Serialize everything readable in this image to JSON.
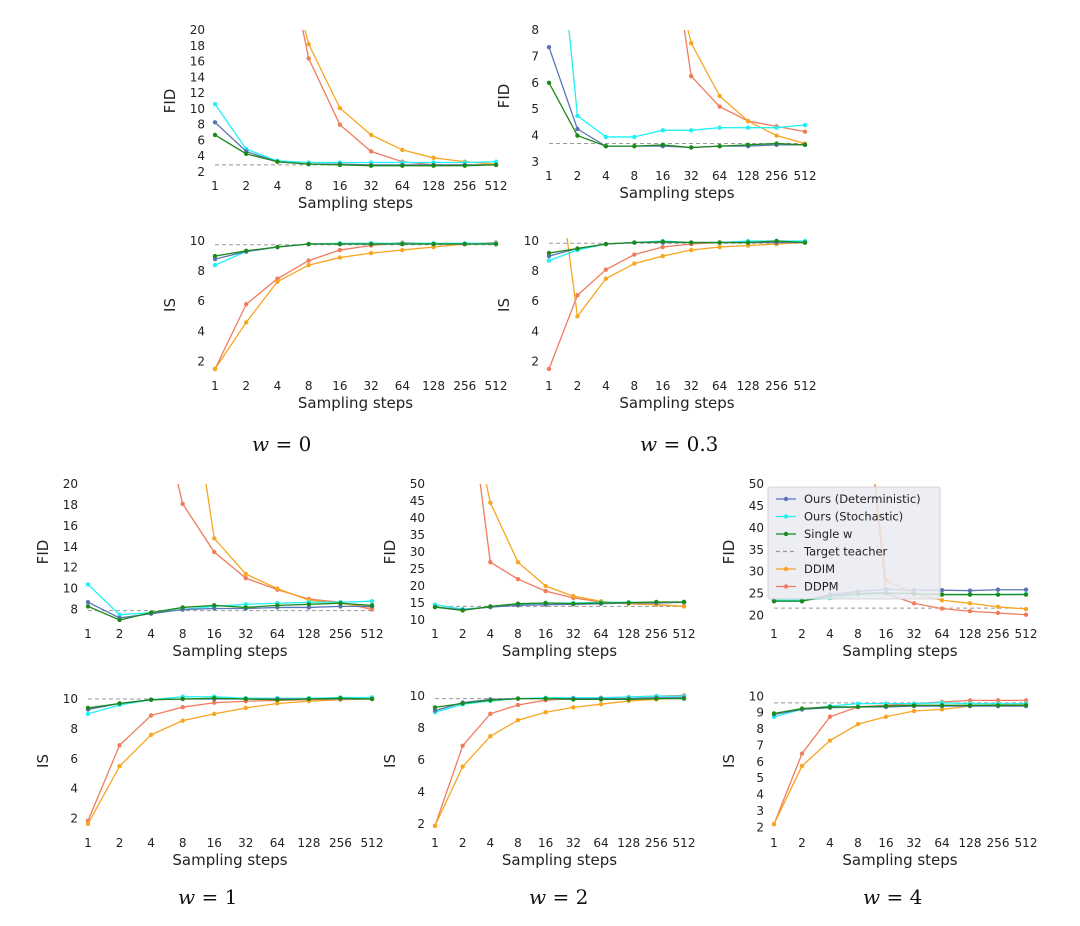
{
  "x_ticks": [
    "1",
    "2",
    "4",
    "8",
    "16",
    "32",
    "64",
    "128",
    "256",
    "512"
  ],
  "legend": [
    {
      "label": "Ours (Deterministic)",
      "color": "#5b74b8",
      "marker": true,
      "dashed": false
    },
    {
      "label": "Ours (Stochastic)",
      "color": "#1ff2f2",
      "marker": true,
      "dashed": false
    },
    {
      "label": "Single w",
      "color": "#1b8a1b",
      "marker": true,
      "dashed": false
    },
    {
      "label": "Target teacher",
      "color": "#999999",
      "marker": false,
      "dashed": true
    },
    {
      "label": "DDIM",
      "color": "#f7a621",
      "marker": true,
      "dashed": false
    },
    {
      "label": "DDPM",
      "color": "#f07c5e",
      "marker": true,
      "dashed": false
    }
  ],
  "captions": [
    {
      "var": "w",
      "eq": " = 0"
    },
    {
      "var": "w",
      "eq": " = 0.3"
    },
    {
      "var": "w",
      "eq": " = 1"
    },
    {
      "var": "w",
      "eq": " = 2"
    },
    {
      "var": "w",
      "eq": " = 4"
    }
  ],
  "chart_data": [
    {
      "type": "line",
      "panel": "w = 0",
      "metric": "FID",
      "xlabel": "Sampling steps",
      "ylabel": "FID",
      "x": [
        1,
        2,
        4,
        8,
        16,
        32,
        64,
        128,
        256,
        512
      ],
      "ylim": [
        2,
        20
      ],
      "yticks": [
        2,
        4,
        6,
        8,
        10,
        12,
        14,
        16,
        18,
        20
      ],
      "target": 2.9,
      "series": [
        {
          "name": "Ours (Deterministic)",
          "values": [
            8.3,
            4.6,
            3.3,
            3.0,
            3.0,
            2.9,
            2.9,
            2.9,
            2.9,
            2.9
          ]
        },
        {
          "name": "Ours (Stochastic)",
          "values": [
            10.6,
            4.9,
            3.4,
            3.2,
            3.2,
            3.2,
            3.2,
            3.2,
            3.2,
            3.3
          ]
        },
        {
          "name": "Single w",
          "values": [
            6.7,
            4.3,
            3.3,
            3.0,
            2.9,
            2.8,
            2.8,
            2.8,
            2.8,
            2.9
          ]
        },
        {
          "name": "DDIM",
          "values": [
            null,
            null,
            null,
            18.2,
            10.1,
            6.7,
            4.8,
            3.8,
            3.3,
            3.0
          ]
        },
        {
          "name": "DDPM",
          "values": [
            null,
            null,
            null,
            16.4,
            8.0,
            4.6,
            3.3,
            2.9,
            2.9,
            2.9
          ]
        }
      ]
    },
    {
      "type": "line",
      "panel": "w = 0",
      "metric": "IS",
      "xlabel": "Sampling steps",
      "ylabel": "IS",
      "x": [
        1,
        2,
        4,
        8,
        16,
        32,
        64,
        128,
        256,
        512
      ],
      "ylim": [
        1.3,
        10.2
      ],
      "yticks": [
        2,
        4,
        6,
        8,
        10
      ],
      "target": 9.75,
      "series": [
        {
          "name": "Ours (Deterministic)",
          "values": [
            8.8,
            9.3,
            9.6,
            9.8,
            9.8,
            9.8,
            9.8,
            9.8,
            9.8,
            9.8
          ]
        },
        {
          "name": "Ours (Stochastic)",
          "values": [
            8.4,
            9.3,
            9.6,
            9.8,
            9.85,
            9.85,
            9.85,
            9.85,
            9.85,
            9.85
          ]
        },
        {
          "name": "Single w",
          "values": [
            9.0,
            9.35,
            9.6,
            9.8,
            9.8,
            9.8,
            9.8,
            9.8,
            9.8,
            9.8
          ]
        },
        {
          "name": "DDIM",
          "values": [
            1.5,
            4.6,
            7.3,
            8.4,
            8.9,
            9.2,
            9.4,
            9.6,
            9.8,
            9.8
          ]
        },
        {
          "name": "DDPM",
          "values": [
            1.5,
            5.8,
            7.5,
            8.7,
            9.4,
            9.7,
            9.9,
            9.8,
            9.8,
            9.9
          ]
        }
      ]
    },
    {
      "type": "line",
      "panel": "w = 0.3",
      "metric": "FID",
      "xlabel": "Sampling steps",
      "ylabel": "FID",
      "x": [
        1,
        2,
        4,
        8,
        16,
        32,
        64,
        128,
        256,
        512
      ],
      "ylim": [
        3,
        8
      ],
      "yticks": [
        3,
        4,
        5,
        6,
        7,
        8
      ],
      "target": 3.7,
      "series": [
        {
          "name": "Ours (Deterministic)",
          "values": [
            7.35,
            4.25,
            3.6,
            3.6,
            3.6,
            3.55,
            3.6,
            3.6,
            3.65,
            3.65
          ]
        },
        {
          "name": "Ours (Stochastic)",
          "values": [
            null,
            4.75,
            3.95,
            3.95,
            4.2,
            4.2,
            4.3,
            4.3,
            4.3,
            4.4
          ]
        },
        {
          "name": "Single w",
          "values": [
            6.0,
            4.0,
            3.6,
            3.6,
            3.65,
            3.55,
            3.6,
            3.65,
            3.7,
            3.65
          ]
        },
        {
          "name": "DDIM",
          "values": [
            null,
            null,
            null,
            null,
            null,
            7.5,
            5.5,
            4.55,
            4.0,
            3.7
          ]
        },
        {
          "name": "DDPM",
          "values": [
            null,
            null,
            null,
            null,
            null,
            6.25,
            5.1,
            4.55,
            4.35,
            4.15
          ]
        }
      ]
    },
    {
      "type": "line",
      "panel": "w = 0.3",
      "metric": "IS",
      "xlabel": "Sampling steps",
      "ylabel": "IS",
      "x": [
        1,
        2,
        4,
        8,
        16,
        32,
        64,
        128,
        256,
        512
      ],
      "ylim": [
        1.3,
        10.2
      ],
      "yticks": [
        2,
        4,
        6,
        8,
        10
      ],
      "target": 9.85,
      "series": [
        {
          "name": "Ours (Deterministic)",
          "values": [
            9.0,
            9.5,
            9.8,
            9.9,
            9.9,
            9.9,
            9.9,
            9.9,
            9.9,
            9.9
          ]
        },
        {
          "name": "Ours (Stochastic)",
          "values": [
            8.7,
            9.4,
            9.8,
            9.9,
            10.0,
            9.9,
            9.9,
            10.0,
            10.0,
            10.0
          ]
        },
        {
          "name": "Single w",
          "values": [
            9.2,
            9.5,
            9.8,
            9.9,
            9.95,
            9.9,
            9.9,
            9.9,
            10.0,
            9.9
          ]
        },
        {
          "name": "DDIM",
          "values": [
            null,
            5.0,
            7.5,
            8.5,
            9.0,
            9.4,
            9.6,
            9.7,
            9.8,
            9.9
          ]
        },
        {
          "name": "DDPM",
          "values": [
            1.5,
            6.4,
            8.1,
            9.1,
            9.6,
            9.8,
            9.9,
            9.9,
            9.9,
            9.9
          ]
        }
      ]
    },
    {
      "type": "line",
      "panel": "w = 1",
      "metric": "FID",
      "xlabel": "Sampling steps",
      "ylabel": "FID",
      "x": [
        1,
        2,
        4,
        8,
        16,
        32,
        64,
        128,
        256,
        512
      ],
      "ylim": [
        7,
        20
      ],
      "yticks": [
        8,
        10,
        12,
        14,
        16,
        18,
        20
      ],
      "target": 7.9,
      "series": [
        {
          "name": "Ours (Deterministic)",
          "values": [
            8.7,
            7.2,
            7.6,
            8.0,
            8.1,
            8.1,
            8.2,
            8.2,
            8.3,
            8.3
          ]
        },
        {
          "name": "Ours (Stochastic)",
          "values": [
            10.4,
            7.5,
            7.7,
            8.0,
            8.3,
            8.5,
            8.6,
            8.7,
            8.7,
            8.8
          ]
        },
        {
          "name": "Single w",
          "values": [
            8.3,
            7.0,
            7.7,
            8.2,
            8.4,
            8.2,
            8.4,
            8.5,
            8.6,
            8.4
          ]
        },
        {
          "name": "DDIM",
          "values": [
            null,
            null,
            null,
            null,
            14.8,
            11.4,
            10.0,
            8.9,
            8.6,
            8.2
          ]
        },
        {
          "name": "DDPM",
          "values": [
            null,
            null,
            null,
            18.1,
            13.5,
            11.0,
            9.9,
            9.0,
            8.7,
            8.0
          ]
        }
      ]
    },
    {
      "type": "line",
      "panel": "w = 1",
      "metric": "IS",
      "xlabel": "Sampling steps",
      "ylabel": "IS",
      "x": [
        1,
        2,
        4,
        8,
        16,
        32,
        64,
        128,
        256,
        512
      ],
      "ylim": [
        1.3,
        10.4
      ],
      "yticks": [
        2,
        4,
        6,
        8,
        10
      ],
      "target": 10.0,
      "series": [
        {
          "name": "Ours (Deterministic)",
          "values": [
            9.3,
            9.7,
            9.95,
            10.0,
            10.0,
            10.0,
            10.0,
            10.0,
            10.0,
            10.0
          ]
        },
        {
          "name": "Ours (Stochastic)",
          "values": [
            9.0,
            9.6,
            9.95,
            10.15,
            10.15,
            10.05,
            10.05,
            10.05,
            10.1,
            10.1
          ]
        },
        {
          "name": "Single w",
          "values": [
            9.4,
            9.7,
            9.95,
            10.0,
            10.05,
            10.0,
            9.95,
            10.0,
            10.05,
            10.0
          ]
        },
        {
          "name": "DDIM",
          "values": [
            1.65,
            5.5,
            7.6,
            8.55,
            9.0,
            9.4,
            9.7,
            9.85,
            9.95,
            10.0
          ]
        },
        {
          "name": "DDPM",
          "values": [
            1.85,
            6.9,
            8.9,
            9.45,
            9.75,
            9.85,
            9.9,
            9.95,
            10.0,
            10.0
          ]
        }
      ]
    },
    {
      "type": "line",
      "panel": "w = 2",
      "metric": "FID",
      "xlabel": "Sampling steps",
      "ylabel": "FID",
      "x": [
        1,
        2,
        4,
        8,
        16,
        32,
        64,
        128,
        256,
        512
      ],
      "ylim": [
        10,
        50
      ],
      "yticks": [
        10,
        15,
        20,
        25,
        30,
        35,
        40,
        45,
        50
      ],
      "target": 14.0,
      "series": [
        {
          "name": "Ours (Deterministic)",
          "values": [
            13.8,
            13.0,
            13.8,
            14.3,
            14.5,
            14.6,
            14.8,
            15.0,
            15.0,
            15.2
          ]
        },
        {
          "name": "Ours (Stochastic)",
          "values": [
            14.5,
            13.2,
            13.8,
            14.5,
            15.0,
            15.0,
            15.2,
            15.2,
            15.2,
            15.3
          ]
        },
        {
          "name": "Single w",
          "values": [
            13.8,
            12.8,
            14.0,
            14.8,
            15.0,
            14.8,
            15.0,
            15.1,
            15.3,
            15.3
          ]
        },
        {
          "name": "DDIM",
          "values": [
            null,
            null,
            44.5,
            27.0,
            20.0,
            17.0,
            15.5,
            14.8,
            14.5,
            14.0
          ]
        },
        {
          "name": "DDPM",
          "values": [
            null,
            null,
            27.0,
            22.0,
            18.5,
            16.5,
            15.3,
            14.8,
            14.5,
            14.0
          ]
        }
      ]
    },
    {
      "type": "line",
      "panel": "w = 2",
      "metric": "IS",
      "xlabel": "Sampling steps",
      "ylabel": "IS",
      "x": [
        1,
        2,
        4,
        8,
        16,
        32,
        64,
        128,
        256,
        512
      ],
      "ylim": [
        1.7,
        10.2
      ],
      "yticks": [
        2,
        4,
        6,
        8,
        10
      ],
      "target": 9.85,
      "series": [
        {
          "name": "Ours (Deterministic)",
          "values": [
            9.1,
            9.6,
            9.8,
            9.85,
            9.85,
            9.85,
            9.85,
            9.85,
            9.9,
            9.9
          ]
        },
        {
          "name": "Ours (Stochastic)",
          "values": [
            9.0,
            9.5,
            9.7,
            9.85,
            9.9,
            9.9,
            9.9,
            9.95,
            10.0,
            10.0
          ]
        },
        {
          "name": "Single w",
          "values": [
            9.3,
            9.55,
            9.75,
            9.85,
            9.85,
            9.8,
            9.8,
            9.8,
            9.85,
            9.85
          ]
        },
        {
          "name": "DDIM",
          "values": [
            1.9,
            5.6,
            7.5,
            8.5,
            9.0,
            9.3,
            9.5,
            9.7,
            9.8,
            9.95
          ]
        },
        {
          "name": "DDPM",
          "values": [
            1.9,
            6.9,
            8.9,
            9.45,
            9.75,
            9.85,
            9.9,
            9.95,
            10.0,
            10.05
          ]
        }
      ]
    },
    {
      "type": "line",
      "panel": "w = 4",
      "metric": "FID",
      "xlabel": "Sampling steps",
      "ylabel": "FID",
      "x": [
        1,
        2,
        4,
        8,
        16,
        32,
        64,
        128,
        256,
        512
      ],
      "ylim": [
        19,
        50
      ],
      "yticks": [
        20,
        25,
        30,
        35,
        40,
        45,
        50
      ],
      "target": 21.7,
      "series": [
        {
          "name": "Ours (Deterministic)",
          "values": [
            23.3,
            23.3,
            24.8,
            25.5,
            26.0,
            25.8,
            25.8,
            25.7,
            25.9,
            25.9
          ]
        },
        {
          "name": "Ours (Stochastic)",
          "values": [
            23.5,
            23.5,
            24.0,
            24.8,
            25.0,
            25.0,
            24.8,
            24.8,
            24.8,
            24.9
          ]
        },
        {
          "name": "Single w",
          "values": [
            23.3,
            23.3,
            24.5,
            25.0,
            25.2,
            25.0,
            24.8,
            24.8,
            24.8,
            24.8
          ]
        },
        {
          "name": "DDIM",
          "values": [
            null,
            null,
            null,
            null,
            28.0,
            25.0,
            23.5,
            22.8,
            22.0,
            21.5
          ]
        },
        {
          "name": "DDPM",
          "values": [
            null,
            null,
            null,
            null,
            25.0,
            22.8,
            21.6,
            21.0,
            20.6,
            20.2
          ]
        }
      ]
    },
    {
      "type": "line",
      "panel": "w = 4",
      "metric": "IS",
      "xlabel": "Sampling steps",
      "ylabel": "IS",
      "x": [
        1,
        2,
        4,
        8,
        16,
        32,
        64,
        128,
        256,
        512
      ],
      "ylim": [
        1.9,
        10.2
      ],
      "yticks": [
        2,
        3,
        4,
        5,
        6,
        7,
        8,
        9,
        10
      ],
      "target": 9.6,
      "series": [
        {
          "name": "Ours (Deterministic)",
          "values": [
            8.9,
            9.2,
            9.3,
            9.35,
            9.35,
            9.4,
            9.4,
            9.4,
            9.4,
            9.4
          ]
        },
        {
          "name": "Ours (Stochastic)",
          "values": [
            8.75,
            9.2,
            9.4,
            9.55,
            9.55,
            9.55,
            9.6,
            9.55,
            9.55,
            9.55
          ]
        },
        {
          "name": "Single w",
          "values": [
            8.95,
            9.25,
            9.35,
            9.35,
            9.4,
            9.45,
            9.45,
            9.45,
            9.45,
            9.45
          ]
        },
        {
          "name": "DDIM",
          "values": [
            2.2,
            5.75,
            7.3,
            8.3,
            8.75,
            9.1,
            9.2,
            9.4,
            9.5,
            9.55
          ]
        },
        {
          "name": "DDPM",
          "values": [
            2.2,
            6.5,
            8.75,
            9.35,
            9.45,
            9.55,
            9.65,
            9.75,
            9.75,
            9.75
          ]
        }
      ]
    }
  ]
}
